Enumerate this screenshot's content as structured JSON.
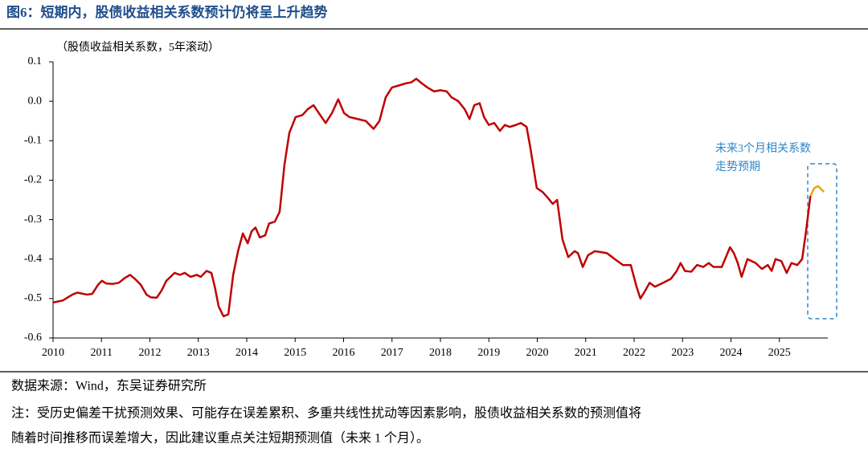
{
  "chart_data": {
    "type": "line",
    "title": "图6：短期内，股债收益相关系数预计仍将呈上升趋势",
    "subtitle": "（股债收益相关系数，5年滚动）",
    "annotation": [
      "未来3个月相关系数",
      "走势预期"
    ],
    "source": "数据来源：Wind，东吴证券研究所",
    "note": [
      "注：受历史偏差干扰预测效果、可能存在误差累积、多重共线性扰动等因素影响，股债收益相关系数的预测值将",
      "随着时间推移而误差增大，因此建议重点关注短期预测值（未来 1 个月）。"
    ],
    "xlim": [
      2010,
      2026
    ],
    "xticks": [
      2010,
      2011,
      2012,
      2013,
      2014,
      2015,
      2016,
      2017,
      2018,
      2019,
      2020,
      2021,
      2022,
      2023,
      2024,
      2025
    ],
    "ylim": [
      -0.6,
      0.1
    ],
    "yticks": [
      0.1,
      {
        "value": 0,
        "label": "0.0"
      },
      -0.1,
      -0.2,
      -0.3,
      -0.4,
      -0.5,
      -0.6
    ],
    "x": [
      2010,
      2010.2,
      2010.4,
      2010.5,
      2010.7,
      2010.81,
      2010.93,
      2011.01,
      2011.1,
      2011.23,
      2011.36,
      2011.48,
      2011.59,
      2011.69,
      2011.81,
      2011.93,
      2012.02,
      2012.14,
      2012.24,
      2012.34,
      2012.51,
      2012.62,
      2012.72,
      2012.84,
      2012.97,
      2013.05,
      2013.17,
      2013.27,
      2013.34,
      2013.42,
      2013.52,
      2013.62,
      2013.72,
      2013.82,
      2013.92,
      2014.02,
      2014.1,
      2014.18,
      2014.27,
      2014.38,
      2014.46,
      2014.58,
      2014.68,
      2014.78,
      2014.88,
      2015.01,
      2015.15,
      2015.26,
      2015.38,
      2015.49,
      2015.63,
      2015.76,
      2015.89,
      2016.01,
      2016.12,
      2016.29,
      2016.46,
      2016.62,
      2016.74,
      2016.87,
      2017.0,
      2017.14,
      2017.27,
      2017.4,
      2017.5,
      2017.62,
      2017.73,
      2017.87,
      2018.0,
      2018.13,
      2018.23,
      2018.37,
      2018.5,
      2018.6,
      2018.7,
      2018.81,
      2018.9,
      2019.0,
      2019.11,
      2019.23,
      2019.33,
      2019.43,
      2019.56,
      2019.66,
      2019.78,
      2019.86,
      2019.99,
      2020.11,
      2020.22,
      2020.32,
      2020.41,
      2020.52,
      2020.64,
      2020.77,
      2020.84,
      2020.94,
      2021.05,
      2021.19,
      2021.3,
      2021.44,
      2021.6,
      2021.77,
      2021.93,
      2022.05,
      2022.13,
      2022.23,
      2022.32,
      2022.43,
      2022.6,
      2022.76,
      2022.88,
      2022.96,
      2023.05,
      2023.18,
      2023.3,
      2023.43,
      2023.54,
      2023.64,
      2023.81,
      2023.98,
      2024.06,
      2024.14,
      2024.22,
      2024.34,
      2024.51,
      2024.64,
      2024.76,
      2024.84,
      2024.92,
      2025.04,
      2025.15,
      2025.25,
      2025.37,
      2025.47,
      2025.55,
      2025.64,
      2025.72,
      2025.8,
      2025.92
    ],
    "series": [
      {
        "color": "#c00000",
        "values": [
          -0.51,
          -0.505,
          -0.49,
          -0.485,
          -0.49,
          -0.488,
          -0.465,
          -0.455,
          -0.462,
          -0.463,
          -0.46,
          -0.448,
          -0.44,
          -0.45,
          -0.465,
          -0.49,
          -0.497,
          -0.498,
          -0.48,
          -0.455,
          -0.435,
          -0.44,
          -0.435,
          -0.445,
          -0.44,
          -0.445,
          -0.43,
          -0.435,
          -0.47,
          -0.52,
          -0.545,
          -0.54,
          -0.44,
          -0.38,
          -0.335,
          -0.36,
          -0.33,
          -0.32,
          -0.345,
          -0.34,
          -0.31,
          -0.305,
          -0.28,
          -0.16,
          -0.08,
          -0.04,
          -0.035,
          -0.02,
          -0.01,
          -0.03,
          -0.055,
          -0.03,
          0.005,
          -0.03,
          -0.04,
          -0.045,
          -0.05,
          -0.07,
          -0.05,
          0.01,
          0.035,
          0.04,
          0.045,
          0.048,
          0.057,
          0.045,
          0.035,
          0.025,
          0.028,
          0.025,
          0.01,
          0,
          -0.02,
          -0.045,
          -0.01,
          -0.005,
          -0.04,
          -0.06,
          -0.055,
          -0.075,
          -0.06,
          -0.065,
          -0.06,
          -0.055,
          -0.065,
          -0.12,
          -0.22,
          -0.23,
          -0.245,
          -0.26,
          -0.25,
          -0.35,
          -0.395,
          -0.38,
          -0.385,
          -0.42,
          -0.39,
          -0.38,
          -0.382,
          -0.385,
          -0.4,
          -0.415,
          -0.415,
          -0.47,
          -0.5,
          -0.48,
          -0.46,
          -0.47,
          -0.46,
          -0.45,
          -0.43,
          -0.41,
          -0.43,
          -0.432,
          -0.415,
          -0.42,
          -0.41,
          -0.42,
          -0.42,
          -0.37,
          -0.385,
          -0.41,
          -0.445,
          -0.4,
          -0.41,
          -0.425,
          -0.415,
          -0.43,
          -0.4,
          -0.405,
          -0.435,
          -0.41,
          -0.415,
          -0.4,
          -0.33,
          -0.24,
          null,
          null,
          null
        ]
      },
      {
        "color": "#f0a30a",
        "values": [
          null,
          null,
          null,
          null,
          null,
          null,
          null,
          null,
          null,
          null,
          null,
          null,
          null,
          null,
          null,
          null,
          null,
          null,
          null,
          null,
          null,
          null,
          null,
          null,
          null,
          null,
          null,
          null,
          null,
          null,
          null,
          null,
          null,
          null,
          null,
          null,
          null,
          null,
          null,
          null,
          null,
          null,
          null,
          null,
          null,
          null,
          null,
          null,
          null,
          null,
          null,
          null,
          null,
          null,
          null,
          null,
          null,
          null,
          null,
          null,
          null,
          null,
          null,
          null,
          null,
          null,
          null,
          null,
          null,
          null,
          null,
          null,
          null,
          null,
          null,
          null,
          null,
          null,
          null,
          null,
          null,
          null,
          null,
          null,
          null,
          null,
          null,
          null,
          null,
          null,
          null,
          null,
          null,
          null,
          null,
          null,
          null,
          null,
          null,
          null,
          null,
          null,
          null,
          null,
          null,
          null,
          null,
          null,
          null,
          null,
          null,
          null,
          null,
          null,
          null,
          null,
          null,
          null,
          null,
          null,
          null,
          null,
          null,
          null,
          null,
          null,
          null,
          null,
          null,
          null,
          null,
          null,
          null,
          null,
          null,
          -0.24,
          -0.22,
          -0.215,
          -0.23
        ]
      }
    ]
  }
}
